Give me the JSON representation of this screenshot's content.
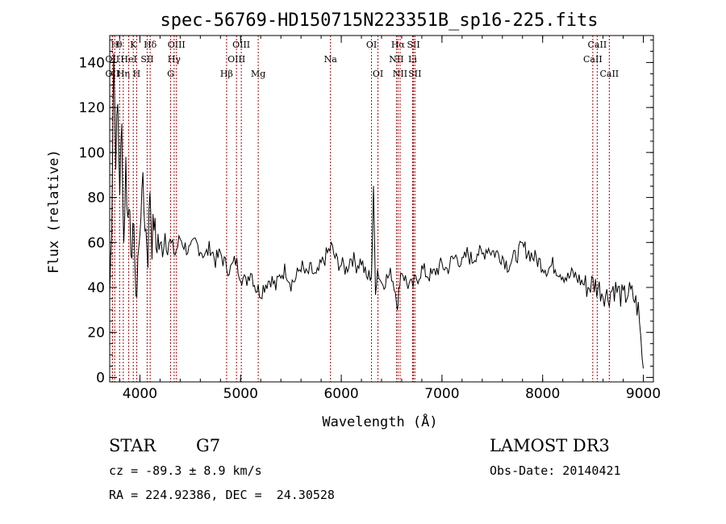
{
  "chart_data": {
    "type": "line",
    "title": "spec-56769-HD150715N223351B_sp16-225.fits",
    "xlabel": "Wavelength (Å)",
    "ylabel": "Flux (relative)",
    "xlim": [
      3700,
      9100
    ],
    "ylim": [
      -2,
      152
    ],
    "xticks": [
      4000,
      5000,
      6000,
      7000,
      8000,
      9000
    ],
    "yticks": [
      0,
      20,
      40,
      60,
      80,
      100,
      120,
      140
    ],
    "grid": false,
    "line_color": "#000000",
    "marker_color": "#aa0000",
    "series": [
      {
        "x": [
          3700,
          3720,
          3740,
          3760,
          3780,
          3800,
          3820,
          3840,
          3860,
          3880,
          3900,
          3920,
          3940,
          3960,
          3980,
          4000,
          4020,
          4040,
          4060,
          4080,
          4100,
          4120,
          4140,
          4160,
          4180,
          4200,
          4250,
          4300,
          4350,
          4400,
          4450,
          4500,
          4550,
          4600,
          4650,
          4700,
          4750,
          4800,
          4850,
          4900,
          4950,
          5000,
          5050,
          5100,
          5150,
          5200,
          5250,
          5300,
          5350,
          5400,
          5450,
          5500,
          5550,
          5600,
          5650,
          5700,
          5750,
          5800,
          5850,
          5900,
          5950,
          6000,
          6050,
          6100,
          6150,
          6200,
          6250,
          6300,
          6320,
          6340,
          6360,
          6400,
          6450,
          6500,
          6550,
          6563,
          6580,
          6600,
          6650,
          6700,
          6750,
          6800,
          6850,
          6900,
          6950,
          7000,
          7050,
          7100,
          7150,
          7200,
          7250,
          7300,
          7350,
          7400,
          7450,
          7500,
          7550,
          7600,
          7650,
          7700,
          7750,
          7800,
          7850,
          7900,
          7950,
          8000,
          8050,
          8100,
          8150,
          8200,
          8250,
          8300,
          8350,
          8400,
          8450,
          8500,
          8550,
          8600,
          8650,
          8700,
          8750,
          8800,
          8850,
          8900,
          8950,
          9000
        ],
        "values": [
          36,
          70,
          145,
          100,
          120,
          85,
          110,
          60,
          95,
          70,
          80,
          45,
          75,
          28,
          55,
          60,
          90,
          75,
          65,
          55,
          85,
          60,
          70,
          58,
          62,
          55,
          65,
          60,
          55,
          62,
          58,
          56,
          60,
          57,
          54,
          58,
          52,
          55,
          50,
          48,
          52,
          46,
          42,
          48,
          40,
          38,
          42,
          44,
          40,
          46,
          48,
          42,
          44,
          50,
          45,
          48,
          44,
          50,
          54,
          58,
          52,
          50,
          48,
          54,
          50,
          52,
          44,
          46,
          82,
          40,
          48,
          42,
          44,
          46,
          36,
          30,
          44,
          48,
          42,
          40,
          44,
          48,
          46,
          45,
          48,
          50,
          48,
          52,
          54,
          50,
          55,
          52,
          56,
          54,
          58,
          56,
          55,
          54,
          50,
          52,
          55,
          58,
          56,
          54,
          52,
          50,
          48,
          50,
          48,
          46,
          44,
          46,
          44,
          42,
          40,
          42,
          40,
          38,
          36,
          40,
          38,
          35,
          38,
          36,
          30,
          4
        ]
      }
    ],
    "spectral_lines": [
      {
        "label": "OII",
        "x": 3727,
        "row": 2
      },
      {
        "label": "H",
        "x": 3750,
        "row": 0
      },
      {
        "label": "θ",
        "x": 3798,
        "row": 0
      },
      {
        "label": "K",
        "x": 3934,
        "row": 0
      },
      {
        "label": "H",
        "x": 3968,
        "row": 2
      },
      {
        "label": "Hη",
        "x": 3835,
        "row": 2
      },
      {
        "label": "OII",
        "x": 3727,
        "row": 1
      },
      {
        "label": "HeI",
        "x": 3889,
        "row": 1
      },
      {
        "label": "SII",
        "x": 4072,
        "row": 1
      },
      {
        "label": "Hδ",
        "x": 4102,
        "row": 0
      },
      {
        "label": "OIII",
        "x": 4363,
        "row": 0
      },
      {
        "label": "Hγ",
        "x": 4340,
        "row": 1
      },
      {
        "label": "G",
        "x": 4305,
        "row": 2
      },
      {
        "label": "Hβ",
        "x": 4861,
        "row": 2
      },
      {
        "label": "OIII",
        "x": 5007,
        "row": 0
      },
      {
        "label": "OIII",
        "x": 4959,
        "row": 1
      },
      {
        "label": "Mg",
        "x": 5175,
        "row": 2
      },
      {
        "label": "Na",
        "x": 5893,
        "row": 1
      },
      {
        "label": "OI",
        "x": 6300,
        "row": 0
      },
      {
        "label": "OI",
        "x": 6364,
        "row": 2
      },
      {
        "label": "Hα",
        "x": 6563,
        "row": 0
      },
      {
        "label": "SII",
        "x": 6717,
        "row": 0
      },
      {
        "label": "NII",
        "x": 6548,
        "row": 1
      },
      {
        "label": "Li",
        "x": 6708,
        "row": 1
      },
      {
        "label": "NII",
        "x": 6584,
        "row": 2
      },
      {
        "label": "SII",
        "x": 6731,
        "row": 2
      },
      {
        "label": "CaII",
        "x": 8542,
        "row": 0
      },
      {
        "label": "CaII",
        "x": 8498,
        "row": 1
      },
      {
        "label": "CaII",
        "x": 8662,
        "row": 2
      }
    ]
  },
  "info": {
    "object_class": "STAR",
    "subclass": "G7",
    "survey": "LAMOST DR3",
    "redshift": "cz = -89.3 ± 8.9 km/s",
    "obs_date": "Obs-Date: 20140421",
    "coords": "RA = 224.92386, DEC =  24.30528"
  }
}
